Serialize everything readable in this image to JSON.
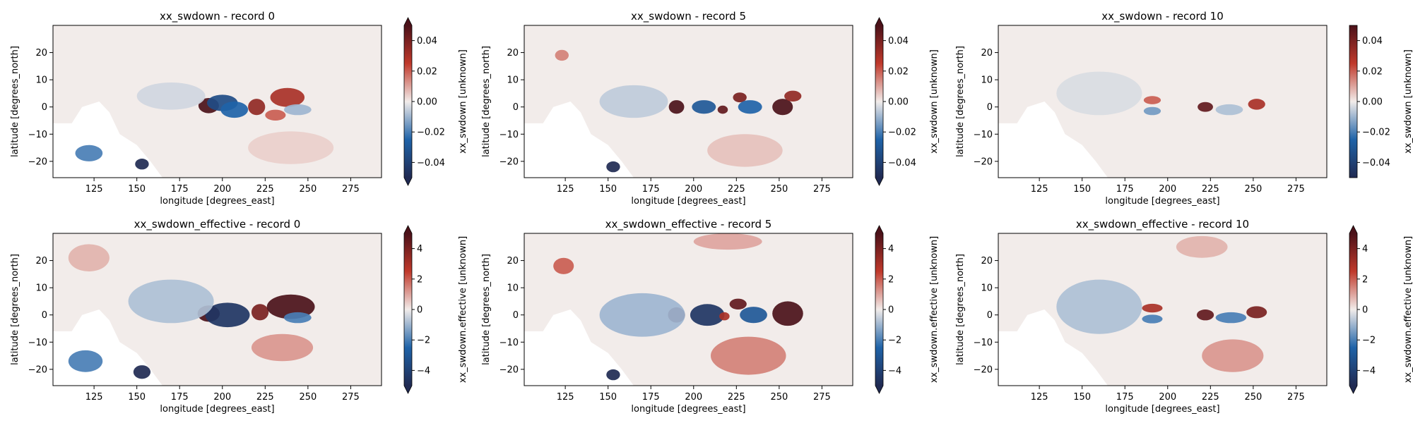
{
  "colors": {
    "neg_end": "#202a52",
    "neg_mid": "#1f63a8",
    "neutral": "#f2ecea",
    "pos_mid": "#c0392b",
    "pos_end": "#4b1119",
    "land": "#ffffff"
  },
  "chart_data": [
    {
      "type": "heatmap",
      "variable": "xx_swdown",
      "title": "xx_swdown - record 0",
      "xlabel": "longitude [degrees_east]",
      "ylabel": "latitude [degrees_north]",
      "xlim": [
        101,
        293
      ],
      "ylim": [
        -26,
        30
      ],
      "xticks": [
        125,
        150,
        175,
        200,
        225,
        250,
        275
      ],
      "yticks": [
        -20,
        -10,
        0,
        10,
        20
      ],
      "colorbar": {
        "label": "xx_swdown [unknown]",
        "range": [
          -0.05,
          0.05
        ],
        "ticks": [
          -0.04,
          -0.02,
          0.0,
          0.02,
          0.04
        ],
        "tick_labels": [
          "−0.04",
          "−0.02",
          "0.00",
          "0.02",
          "0.04"
        ],
        "extend": "both"
      },
      "features": [
        {
          "lon": 153,
          "lat": -21,
          "rx": 4,
          "ry": 2,
          "v": -0.05
        },
        {
          "lon": 122,
          "lat": -17,
          "rx": 8,
          "ry": 3,
          "v": -0.02
        },
        {
          "lon": 192,
          "lat": 0.5,
          "rx": 6,
          "ry": 2.8,
          "v": 0.05
        },
        {
          "lon": 200,
          "lat": 1.5,
          "rx": 9,
          "ry": 3,
          "v": -0.035
        },
        {
          "lon": 207,
          "lat": -1,
          "rx": 8,
          "ry": 3,
          "v": -0.025
        },
        {
          "lon": 220,
          "lat": 0,
          "rx": 5,
          "ry": 3,
          "v": 0.035
        },
        {
          "lon": 238,
          "lat": 3.5,
          "rx": 10,
          "ry": 3.5,
          "v": 0.03
        },
        {
          "lon": 231,
          "lat": -3,
          "rx": 6,
          "ry": 2,
          "v": 0.02
        },
        {
          "lon": 244,
          "lat": -1,
          "rx": 8,
          "ry": 2,
          "v": -0.01
        },
        {
          "lon": 170,
          "lat": 4,
          "rx": 20,
          "ry": 5,
          "v": -0.004
        },
        {
          "lon": 240,
          "lat": -15,
          "rx": 25,
          "ry": 6,
          "v": 0.004
        }
      ]
    },
    {
      "type": "heatmap",
      "variable": "xx_swdown",
      "title": "xx_swdown - record 5",
      "xlabel": "longitude [degrees_east]",
      "ylabel": "latitude [degrees_north]",
      "xlim": [
        101,
        293
      ],
      "ylim": [
        -26,
        30
      ],
      "xticks": [
        125,
        150,
        175,
        200,
        225,
        250,
        275
      ],
      "yticks": [
        -20,
        -10,
        0,
        10,
        20
      ],
      "colorbar": {
        "label": "xx_swdown [unknown]",
        "range": [
          -0.05,
          0.05
        ],
        "ticks": [
          -0.04,
          -0.02,
          0.0,
          0.02,
          0.04
        ],
        "tick_labels": [
          "−0.04",
          "−0.02",
          "0.00",
          "0.02",
          "0.04"
        ],
        "extend": "both"
      },
      "features": [
        {
          "lon": 153,
          "lat": -22,
          "rx": 4,
          "ry": 2,
          "v": -0.05
        },
        {
          "lon": 190,
          "lat": 0,
          "rx": 4.5,
          "ry": 2.5,
          "v": 0.05
        },
        {
          "lon": 206,
          "lat": 0,
          "rx": 7,
          "ry": 2.5,
          "v": -0.03
        },
        {
          "lon": 217,
          "lat": -1,
          "rx": 3,
          "ry": 1.5,
          "v": 0.045
        },
        {
          "lon": 227,
          "lat": 3.5,
          "rx": 4,
          "ry": 1.8,
          "v": 0.04
        },
        {
          "lon": 233,
          "lat": 0,
          "rx": 7,
          "ry": 2.5,
          "v": -0.025
        },
        {
          "lon": 252,
          "lat": 0,
          "rx": 6,
          "ry": 3,
          "v": 0.05
        },
        {
          "lon": 258,
          "lat": 4,
          "rx": 5,
          "ry": 2,
          "v": 0.035
        },
        {
          "lon": 123,
          "lat": 19,
          "rx": 4,
          "ry": 2,
          "v": 0.015
        },
        {
          "lon": 230,
          "lat": -16,
          "rx": 22,
          "ry": 6,
          "v": 0.006
        },
        {
          "lon": 165,
          "lat": 2,
          "rx": 20,
          "ry": 6,
          "v": -0.006
        }
      ]
    },
    {
      "type": "heatmap",
      "variable": "xx_swdown",
      "title": "xx_swdown - record 10",
      "xlabel": "longitude [degrees_east]",
      "ylabel": "latitude [degrees_north]",
      "xlim": [
        101,
        293
      ],
      "ylim": [
        -26,
        30
      ],
      "xticks": [
        125,
        150,
        175,
        200,
        225,
        250,
        275
      ],
      "yticks": [
        -20,
        -10,
        0,
        10,
        20
      ],
      "colorbar": {
        "label": "xx_swdown [unknown]",
        "range": [
          -0.05,
          0.05
        ],
        "ticks": [
          -0.04,
          -0.02,
          0.0,
          0.02,
          0.04
        ],
        "tick_labels": [
          "−0.04",
          "−0.02",
          "0.00",
          "0.02",
          "0.04"
        ],
        "extend": "neither"
      },
      "features": [
        {
          "lon": 191,
          "lat": 2.5,
          "rx": 5,
          "ry": 1.5,
          "v": 0.02
        },
        {
          "lon": 191,
          "lat": -1.5,
          "rx": 5,
          "ry": 1.5,
          "v": -0.015
        },
        {
          "lon": 222,
          "lat": 0,
          "rx": 4.5,
          "ry": 1.8,
          "v": 0.045
        },
        {
          "lon": 252,
          "lat": 1,
          "rx": 5,
          "ry": 2,
          "v": 0.03
        },
        {
          "lon": 236,
          "lat": -1,
          "rx": 8,
          "ry": 2,
          "v": -0.008
        },
        {
          "lon": 160,
          "lat": 5,
          "rx": 25,
          "ry": 8,
          "v": -0.003
        }
      ]
    },
    {
      "type": "heatmap",
      "variable": "xx_swdown_effective",
      "title": "xx_swdown_effective - record 0",
      "xlabel": "longitude [degrees_east]",
      "ylabel": "latitude [degrees_north]",
      "xlim": [
        101,
        293
      ],
      "ylim": [
        -26,
        30
      ],
      "xticks": [
        125,
        150,
        175,
        200,
        225,
        250,
        275
      ],
      "yticks": [
        -20,
        -10,
        0,
        10,
        20
      ],
      "colorbar": {
        "label": "xx_swdown.effective [unknown]",
        "range": [
          -5,
          5
        ],
        "ticks": [
          -4,
          -2,
          0,
          2,
          4
        ],
        "tick_labels": [
          "−4",
          "−2",
          "0",
          "2",
          "4"
        ],
        "extend": "both"
      },
      "features": [
        {
          "lon": 153,
          "lat": -21,
          "rx": 5,
          "ry": 2.5,
          "v": -5
        },
        {
          "lon": 120,
          "lat": -17,
          "rx": 10,
          "ry": 4,
          "v": -2
        },
        {
          "lon": 122,
          "lat": 21,
          "rx": 12,
          "ry": 5,
          "v": 0.8
        },
        {
          "lon": 192,
          "lat": 0.5,
          "rx": 6.5,
          "ry": 3,
          "v": 5
        },
        {
          "lon": 203,
          "lat": 0,
          "rx": 13,
          "ry": 4.5,
          "v": -4.5
        },
        {
          "lon": 222,
          "lat": 1,
          "rx": 5,
          "ry": 3,
          "v": 4
        },
        {
          "lon": 240,
          "lat": 3,
          "rx": 14,
          "ry": 4.5,
          "v": 5
        },
        {
          "lon": 244,
          "lat": -1,
          "rx": 8,
          "ry": 2,
          "v": -2
        },
        {
          "lon": 235,
          "lat": -12,
          "rx": 18,
          "ry": 5,
          "v": 1.2
        },
        {
          "lon": 170,
          "lat": 5,
          "rx": 25,
          "ry": 8,
          "v": -0.8
        }
      ]
    },
    {
      "type": "heatmap",
      "variable": "xx_swdown_effective",
      "title": "xx_swdown_effective - record 5",
      "xlabel": "longitude [degrees_east]",
      "ylabel": "latitude [degrees_north]",
      "xlim": [
        101,
        293
      ],
      "ylim": [
        -26,
        30
      ],
      "xticks": [
        125,
        150,
        175,
        200,
        225,
        250,
        275
      ],
      "yticks": [
        -20,
        -10,
        0,
        10,
        20
      ],
      "colorbar": {
        "label": "xx_swdown.effective [unknown]",
        "range": [
          -5,
          5
        ],
        "ticks": [
          -4,
          -2,
          0,
          2,
          4
        ],
        "tick_labels": [
          "−4",
          "−2",
          "0",
          "2",
          "4"
        ],
        "extend": "both"
      },
      "features": [
        {
          "lon": 153,
          "lat": -22,
          "rx": 4,
          "ry": 2,
          "v": -5
        },
        {
          "lon": 124,
          "lat": 18,
          "rx": 6,
          "ry": 3,
          "v": 2
        },
        {
          "lon": 190,
          "lat": 0,
          "rx": 5,
          "ry": 2.8,
          "v": 5
        },
        {
          "lon": 208,
          "lat": 0,
          "rx": 10,
          "ry": 4,
          "v": -4.5
        },
        {
          "lon": 218,
          "lat": -0.5,
          "rx": 3,
          "ry": 1.5,
          "v": 3
        },
        {
          "lon": 226,
          "lat": 4,
          "rx": 5,
          "ry": 2,
          "v": 4.5
        },
        {
          "lon": 235,
          "lat": 0,
          "rx": 8,
          "ry": 3,
          "v": -3
        },
        {
          "lon": 255,
          "lat": 0.5,
          "rx": 9,
          "ry": 4.5,
          "v": 5
        },
        {
          "lon": 232,
          "lat": -15,
          "rx": 22,
          "ry": 7,
          "v": 1.5
        },
        {
          "lon": 220,
          "lat": 27,
          "rx": 20,
          "ry": 3,
          "v": 1
        },
        {
          "lon": 170,
          "lat": 0,
          "rx": 25,
          "ry": 8,
          "v": -1
        }
      ]
    },
    {
      "type": "heatmap",
      "variable": "xx_swdown_effective",
      "title": "xx_swdown_effective - record 10",
      "xlabel": "longitude [degrees_east]",
      "ylabel": "latitude [degrees_north]",
      "xlim": [
        101,
        293
      ],
      "ylim": [
        -26,
        30
      ],
      "xticks": [
        125,
        150,
        175,
        200,
        225,
        250,
        275
      ],
      "yticks": [
        -20,
        -10,
        0,
        10,
        20
      ],
      "colorbar": {
        "label": "xx_swdown.effective [unknown]",
        "range": [
          -5,
          5
        ],
        "ticks": [
          -4,
          -2,
          0,
          2,
          4
        ],
        "tick_labels": [
          "−4",
          "−2",
          "0",
          "2",
          "4"
        ],
        "extend": "both"
      },
      "features": [
        {
          "lon": 191,
          "lat": 2.5,
          "rx": 6,
          "ry": 1.6,
          "v": 3
        },
        {
          "lon": 191,
          "lat": -1.5,
          "rx": 6,
          "ry": 1.6,
          "v": -2
        },
        {
          "lon": 222,
          "lat": 0,
          "rx": 5,
          "ry": 2,
          "v": 4.5
        },
        {
          "lon": 252,
          "lat": 1,
          "rx": 6,
          "ry": 2.2,
          "v": 4
        },
        {
          "lon": 237,
          "lat": -1,
          "rx": 9,
          "ry": 2,
          "v": -2
        },
        {
          "lon": 238,
          "lat": -15,
          "rx": 18,
          "ry": 6,
          "v": 1.2
        },
        {
          "lon": 220,
          "lat": 25,
          "rx": 15,
          "ry": 4,
          "v": 0.8
        },
        {
          "lon": 160,
          "lat": 3,
          "rx": 25,
          "ry": 10,
          "v": -0.8
        }
      ]
    }
  ]
}
